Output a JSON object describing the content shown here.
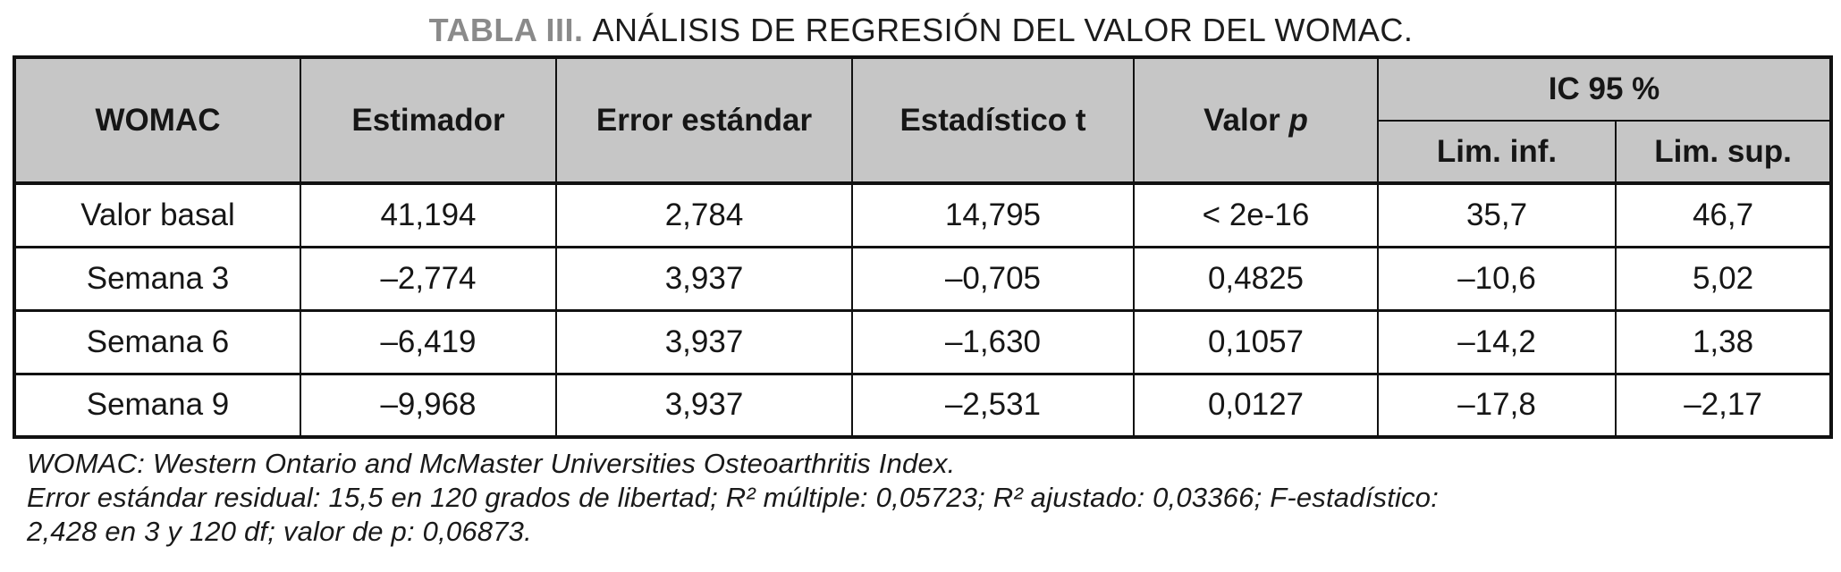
{
  "colors": {
    "header_bg": "#c6c6c6",
    "border_color": "#111111",
    "title_label_color": "#8a8a8a"
  },
  "title": {
    "label": "TABLA III.",
    "text": "ANÁLISIS DE REGRESIÓN DEL VALOR DEL WOMAC."
  },
  "table": {
    "headers": {
      "womac": "WOMAC",
      "estimador": "Estimador",
      "error_estandar": "Error estándar",
      "estadistico_t": "Estadístico t",
      "valor_p_text": "Valor",
      "valor_p_italic": "p",
      "ic_group": "IC 95 %",
      "lim_inf": "Lim. inf.",
      "lim_sup": "Lim. sup."
    },
    "rows": [
      {
        "cells": [
          "Valor basal",
          "41,194",
          "2,784",
          "14,795",
          "< 2e-16",
          "35,7",
          "46,7"
        ]
      },
      {
        "cells": [
          "Semana 3",
          "–2,774",
          "3,937",
          "–0,705",
          "0,4825",
          "–10,6",
          "5,02"
        ]
      },
      {
        "cells": [
          "Semana 6",
          "–6,419",
          "3,937",
          "–1,630",
          "0,1057",
          "–14,2",
          "1,38"
        ]
      },
      {
        "cells": [
          "Semana 9",
          "–9,968",
          "3,937",
          "–2,531",
          "0,0127",
          "–17,8",
          "–2,17"
        ]
      }
    ]
  },
  "footnotes": {
    "line1": "WOMAC: Western Ontario and McMaster Universities Osteoarthritis Index.",
    "line2": "Error estándar residual: 15,5 en 120 grados de libertad; R² múltiple: 0,05723; R² ajustado: 0,03366; F-estadístico:",
    "line3": "2,428 en 3 y 120 df; valor de p: 0,06873."
  }
}
